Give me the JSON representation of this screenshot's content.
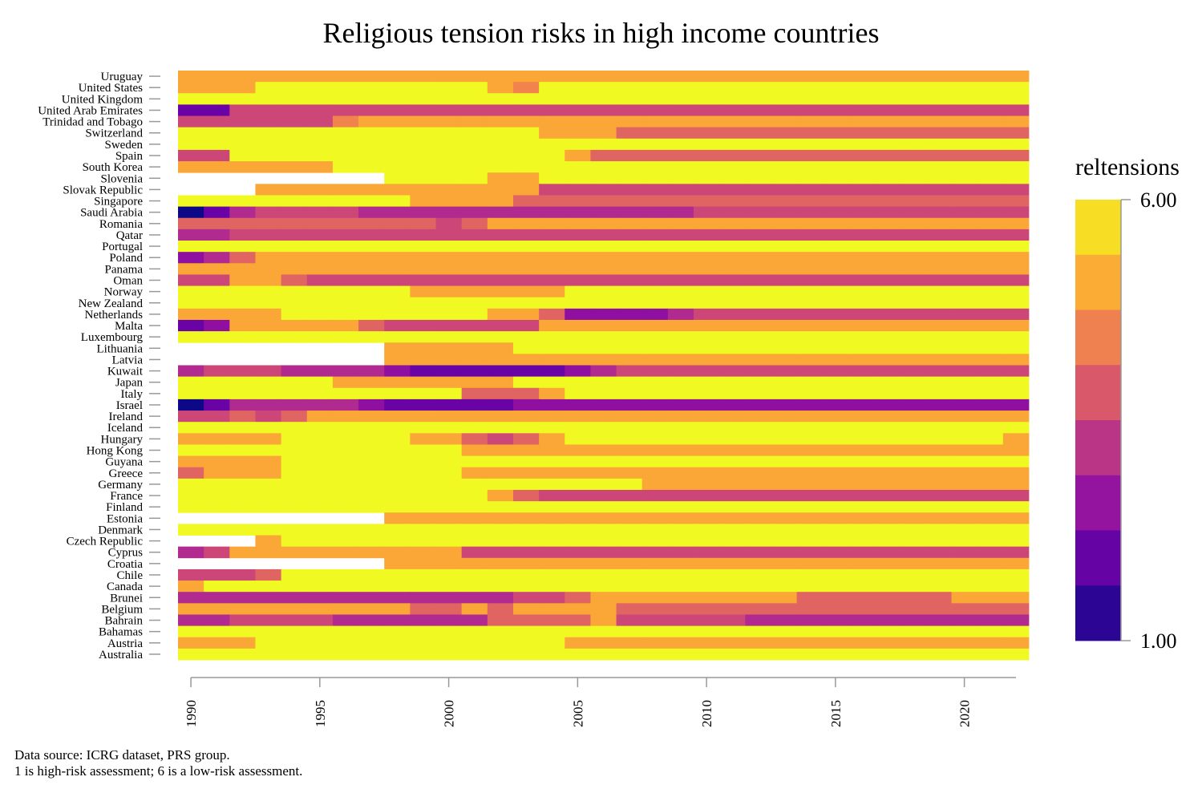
{
  "chart_data": {
    "type": "heatmap",
    "title": "Religious tension risks in high income countries",
    "xlabel": "",
    "ylabel": "",
    "legend_title": "reltensions",
    "legend_position": "right",
    "legend_labels": [
      "6.00",
      "1.00"
    ],
    "color_range": [
      1,
      6
    ],
    "color_scale": [
      "#0d0887",
      "#4c02a1",
      "#7e03a8",
      "#a92395",
      "#cc4778",
      "#e56b5d",
      "#f89441",
      "#fdc328",
      "#f0f921"
    ],
    "x_ticks": [
      "1990",
      "1995",
      "2000",
      "2005",
      "2010",
      "2015",
      "2020"
    ],
    "x_range": [
      1990,
      2022
    ],
    "grid": false,
    "years": [
      1990,
      1991,
      1992,
      1993,
      1994,
      1995,
      1996,
      1997,
      1998,
      1999,
      2000,
      2001,
      2002,
      2003,
      2004,
      2005,
      2006,
      2007,
      2008,
      2009,
      2010,
      2011,
      2012,
      2013,
      2014,
      2015,
      2016,
      2017,
      2018,
      2019,
      2020,
      2021,
      2022
    ],
    "series": [
      {
        "name": "Uruguay",
        "runs": [
          [
            1990,
            2022,
            5
          ]
        ]
      },
      {
        "name": "United States",
        "runs": [
          [
            1990,
            1992,
            5
          ],
          [
            1993,
            2001,
            6
          ],
          [
            2002,
            2002,
            5
          ],
          [
            2003,
            2003,
            4.5
          ],
          [
            2004,
            2022,
            6
          ]
        ]
      },
      {
        "name": "United Kingdom",
        "runs": [
          [
            1990,
            2022,
            6
          ]
        ]
      },
      {
        "name": "United Arab Emirates",
        "runs": [
          [
            1990,
            1991,
            2
          ],
          [
            1992,
            2022,
            3.5
          ]
        ]
      },
      {
        "name": "Trinidad and Tobago",
        "runs": [
          [
            1990,
            1995,
            3.5
          ],
          [
            1996,
            1996,
            4.5
          ],
          [
            1997,
            2022,
            5
          ]
        ]
      },
      {
        "name": "Switzerland",
        "runs": [
          [
            1990,
            2003,
            6
          ],
          [
            2004,
            2006,
            5
          ],
          [
            2007,
            2022,
            4
          ]
        ]
      },
      {
        "name": "Sweden",
        "runs": [
          [
            1990,
            2022,
            6
          ]
        ]
      },
      {
        "name": "Spain",
        "runs": [
          [
            1990,
            1991,
            3.5
          ],
          [
            1992,
            2004,
            6
          ],
          [
            2005,
            2005,
            5
          ],
          [
            2006,
            2022,
            4
          ]
        ]
      },
      {
        "name": "South Korea",
        "runs": [
          [
            1990,
            1995,
            5
          ],
          [
            1996,
            2022,
            6
          ]
        ]
      },
      {
        "name": "Slovenia",
        "runs": [
          [
            1998,
            2001,
            6
          ],
          [
            2002,
            2003,
            5
          ],
          [
            2004,
            2022,
            6
          ]
        ]
      },
      {
        "name": "Slovak Republic",
        "runs": [
          [
            1993,
            2003,
            5
          ],
          [
            2004,
            2022,
            3.5
          ]
        ]
      },
      {
        "name": "Singapore",
        "runs": [
          [
            1990,
            1998,
            6
          ],
          [
            1999,
            2002,
            5
          ],
          [
            2003,
            2022,
            4
          ]
        ]
      },
      {
        "name": "Saudi Arabia",
        "runs": [
          [
            1990,
            1990,
            1
          ],
          [
            1991,
            1991,
            2
          ],
          [
            1992,
            1992,
            3
          ],
          [
            1993,
            1996,
            3.5
          ],
          [
            1997,
            2009,
            3
          ],
          [
            2010,
            2022,
            3.5
          ]
        ]
      },
      {
        "name": "Romania",
        "runs": [
          [
            1990,
            1999,
            4
          ],
          [
            2000,
            2000,
            3.5
          ],
          [
            2001,
            2001,
            4
          ],
          [
            2002,
            2022,
            5
          ]
        ]
      },
      {
        "name": "Qatar",
        "runs": [
          [
            1990,
            1991,
            3
          ],
          [
            1992,
            2022,
            3.5
          ]
        ]
      },
      {
        "name": "Portugal",
        "runs": [
          [
            1990,
            2022,
            6
          ]
        ]
      },
      {
        "name": "Poland",
        "runs": [
          [
            1990,
            1990,
            2.5
          ],
          [
            1991,
            1991,
            3
          ],
          [
            1992,
            1992,
            4
          ],
          [
            1993,
            2022,
            5
          ]
        ]
      },
      {
        "name": "Panama",
        "runs": [
          [
            1990,
            2022,
            5
          ]
        ]
      },
      {
        "name": "Oman",
        "runs": [
          [
            1990,
            1991,
            3.5
          ],
          [
            1992,
            1993,
            5
          ],
          [
            1994,
            1994,
            4
          ],
          [
            1995,
            2022,
            3.5
          ]
        ]
      },
      {
        "name": "Norway",
        "runs": [
          [
            1990,
            1998,
            6
          ],
          [
            1999,
            2004,
            5
          ],
          [
            2005,
            2022,
            6
          ]
        ]
      },
      {
        "name": "New Zealand",
        "runs": [
          [
            1990,
            2022,
            6
          ]
        ]
      },
      {
        "name": "Netherlands",
        "runs": [
          [
            1990,
            1993,
            5
          ],
          [
            1994,
            2001,
            6
          ],
          [
            2002,
            2003,
            5
          ],
          [
            2004,
            2004,
            4
          ],
          [
            2005,
            2008,
            2.5
          ],
          [
            2009,
            2009,
            3
          ],
          [
            2010,
            2022,
            3.5
          ]
        ]
      },
      {
        "name": "Malta",
        "runs": [
          [
            1990,
            1990,
            2
          ],
          [
            1991,
            1991,
            2.5
          ],
          [
            1992,
            1996,
            5
          ],
          [
            1997,
            1997,
            4
          ],
          [
            1998,
            2003,
            3.5
          ],
          [
            2004,
            2022,
            5
          ]
        ]
      },
      {
        "name": "Luxembourg",
        "runs": [
          [
            1990,
            2022,
            6
          ]
        ]
      },
      {
        "name": "Lithuania",
        "runs": [
          [
            1998,
            2002,
            5
          ],
          [
            2003,
            2022,
            6
          ]
        ]
      },
      {
        "name": "Latvia",
        "runs": [
          [
            1998,
            2022,
            5
          ]
        ]
      },
      {
        "name": "Kuwait",
        "runs": [
          [
            1990,
            1990,
            3
          ],
          [
            1991,
            1993,
            3.5
          ],
          [
            1994,
            1997,
            3
          ],
          [
            1998,
            1998,
            2.5
          ],
          [
            1999,
            2004,
            2
          ],
          [
            2005,
            2005,
            2.5
          ],
          [
            2006,
            2006,
            3
          ],
          [
            2007,
            2022,
            3.5
          ]
        ]
      },
      {
        "name": "Japan",
        "runs": [
          [
            1990,
            1995,
            6
          ],
          [
            1996,
            2002,
            5
          ],
          [
            2003,
            2022,
            6
          ]
        ]
      },
      {
        "name": "Italy",
        "runs": [
          [
            1990,
            2000,
            6
          ],
          [
            2001,
            2003,
            4
          ],
          [
            2004,
            2004,
            5
          ],
          [
            2005,
            2022,
            6
          ]
        ]
      },
      {
        "name": "Israel",
        "runs": [
          [
            1990,
            1990,
            1
          ],
          [
            1991,
            1991,
            2
          ],
          [
            1992,
            1996,
            3
          ],
          [
            1997,
            1997,
            2.5
          ],
          [
            1998,
            2002,
            2
          ],
          [
            2003,
            2022,
            2.5
          ]
        ]
      },
      {
        "name": "Ireland",
        "runs": [
          [
            1990,
            1991,
            3.5
          ],
          [
            1992,
            1992,
            4
          ],
          [
            1993,
            1993,
            3.5
          ],
          [
            1994,
            1994,
            4
          ],
          [
            1995,
            2022,
            5
          ]
        ]
      },
      {
        "name": "Iceland",
        "runs": [
          [
            1990,
            2022,
            6
          ]
        ]
      },
      {
        "name": "Hungary",
        "runs": [
          [
            1990,
            1993,
            5
          ],
          [
            1994,
            1998,
            6
          ],
          [
            1999,
            2000,
            5
          ],
          [
            2001,
            2001,
            4
          ],
          [
            2002,
            2002,
            3.5
          ],
          [
            2003,
            2003,
            4
          ],
          [
            2004,
            2004,
            5
          ],
          [
            2005,
            2021,
            6
          ],
          [
            2022,
            2022,
            5
          ]
        ]
      },
      {
        "name": "Hong Kong",
        "runs": [
          [
            1990,
            2000,
            6
          ],
          [
            2001,
            2022,
            5
          ]
        ]
      },
      {
        "name": "Guyana",
        "runs": [
          [
            1990,
            1993,
            5
          ],
          [
            1994,
            2022,
            6
          ]
        ]
      },
      {
        "name": "Greece",
        "runs": [
          [
            1990,
            1990,
            4
          ],
          [
            1991,
            1993,
            5
          ],
          [
            1994,
            2000,
            6
          ],
          [
            2001,
            2022,
            5
          ]
        ]
      },
      {
        "name": "Germany",
        "runs": [
          [
            1990,
            2007,
            6
          ],
          [
            2008,
            2022,
            5
          ]
        ]
      },
      {
        "name": "France",
        "runs": [
          [
            1990,
            2001,
            6
          ],
          [
            2002,
            2002,
            5
          ],
          [
            2003,
            2003,
            4
          ],
          [
            2004,
            2022,
            3.5
          ]
        ]
      },
      {
        "name": "Finland",
        "runs": [
          [
            1990,
            2022,
            6
          ]
        ]
      },
      {
        "name": "Estonia",
        "runs": [
          [
            1998,
            2022,
            5
          ]
        ]
      },
      {
        "name": "Denmark",
        "runs": [
          [
            1990,
            2022,
            6
          ]
        ]
      },
      {
        "name": "Czech Republic",
        "runs": [
          [
            1993,
            1993,
            5
          ],
          [
            1994,
            2022,
            6
          ]
        ]
      },
      {
        "name": "Cyprus",
        "runs": [
          [
            1990,
            1990,
            3
          ],
          [
            1991,
            1991,
            3.5
          ],
          [
            1992,
            2000,
            5
          ],
          [
            2001,
            2022,
            3.5
          ]
        ]
      },
      {
        "name": "Croatia",
        "runs": [
          [
            1998,
            2022,
            5
          ]
        ]
      },
      {
        "name": "Chile",
        "runs": [
          [
            1990,
            1992,
            3.5
          ],
          [
            1993,
            1993,
            4
          ],
          [
            1994,
            2022,
            6
          ]
        ]
      },
      {
        "name": "Canada",
        "runs": [
          [
            1990,
            1990,
            5
          ],
          [
            1991,
            2022,
            6
          ]
        ]
      },
      {
        "name": "Brunei",
        "runs": [
          [
            1990,
            2002,
            3
          ],
          [
            2003,
            2004,
            3.5
          ],
          [
            2005,
            2005,
            4
          ],
          [
            2006,
            2013,
            5
          ],
          [
            2014,
            2019,
            4
          ],
          [
            2020,
            2022,
            5
          ]
        ]
      },
      {
        "name": "Belgium",
        "runs": [
          [
            1990,
            1998,
            5
          ],
          [
            1999,
            2000,
            4
          ],
          [
            2001,
            2001,
            5
          ],
          [
            2002,
            2002,
            4
          ],
          [
            2003,
            2006,
            5
          ],
          [
            2007,
            2022,
            4
          ]
        ]
      },
      {
        "name": "Bahrain",
        "runs": [
          [
            1990,
            1991,
            3
          ],
          [
            1992,
            1995,
            3.5
          ],
          [
            1996,
            2001,
            3
          ],
          [
            2002,
            2005,
            4
          ],
          [
            2006,
            2006,
            5
          ],
          [
            2007,
            2011,
            3.5
          ],
          [
            2012,
            2022,
            3
          ]
        ]
      },
      {
        "name": "Bahamas",
        "runs": [
          [
            1990,
            2022,
            6
          ]
        ]
      },
      {
        "name": "Austria",
        "runs": [
          [
            1990,
            1992,
            5
          ],
          [
            1993,
            2004,
            6
          ],
          [
            2005,
            2022,
            5
          ]
        ]
      },
      {
        "name": "Australia",
        "runs": [
          [
            1990,
            2022,
            6
          ]
        ]
      }
    ]
  },
  "caption": {
    "line1": "Data source: ICRG dataset, PRS group.",
    "line2": "1 is high-risk assessment; 6 is a low-risk assessment."
  }
}
